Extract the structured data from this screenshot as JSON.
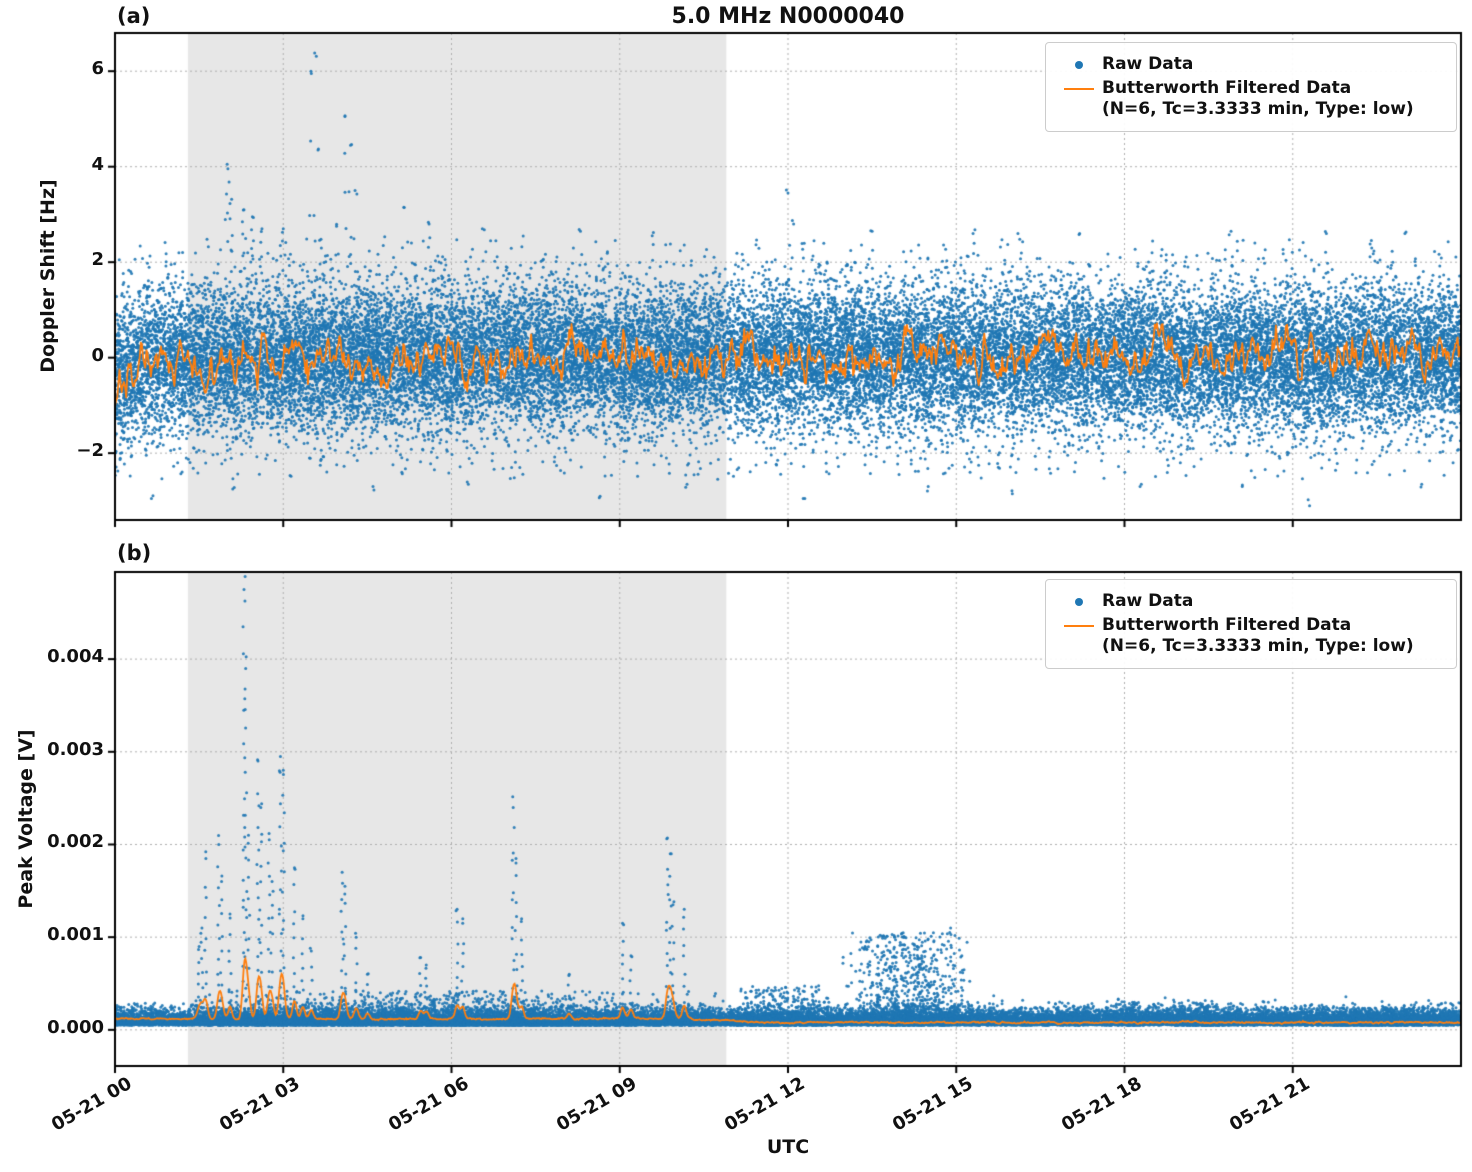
{
  "title": "5.0 MHz N0000040",
  "xlabel": "UTC",
  "panels": {
    "a": {
      "tag": "(a)",
      "ylabel": "Doppler Shift [Hz]"
    },
    "b": {
      "tag": "(b)",
      "ylabel": "Peak Voltage [V]"
    }
  },
  "legend": {
    "raw": "Raw Data",
    "filtered_line1": "Butterworth Filtered Data",
    "filtered_line2": "(N=6, Tc=3.3333 min, Type: low)"
  },
  "colors": {
    "raw": "#1f77b4",
    "filtered": "#ff7f0e",
    "shade": "#e7e7e7",
    "grid": "#b0b0b0",
    "spine": "#000000"
  },
  "chart_data": [
    {
      "panel": "a",
      "type": "scatter",
      "title": "5.0 MHz N0000040",
      "ylabel": "Doppler Shift [Hz]",
      "x_range_hours": [
        0,
        24
      ],
      "xticks": [
        {
          "hour": 0,
          "label": "05-21 00"
        },
        {
          "hour": 3,
          "label": "05-21 03"
        },
        {
          "hour": 6,
          "label": "05-21 06"
        },
        {
          "hour": 9,
          "label": "05-21 09"
        },
        {
          "hour": 12,
          "label": "05-21 12"
        },
        {
          "hour": 15,
          "label": "05-21 15"
        },
        {
          "hour": 18,
          "label": "05-21 18"
        },
        {
          "hour": 21,
          "label": "05-21 21"
        }
      ],
      "ylim": [
        -3.4,
        6.8
      ],
      "yticks": [
        {
          "v": -2,
          "label": "−2"
        },
        {
          "v": 0,
          "label": "0"
        },
        {
          "v": 2,
          "label": "2"
        },
        {
          "v": 4,
          "label": "4"
        },
        {
          "v": 6,
          "label": "6"
        }
      ],
      "grid": "dotted",
      "legend_position": "upper right",
      "shaded_region_hours": [
        1.3,
        10.9
      ],
      "series": [
        {
          "name": "Raw Data",
          "style": "scatter",
          "color": "#1f77b4",
          "noise": {
            "n": 30000,
            "sd": 0.75,
            "clip": 2.55,
            "sparse_n": 900,
            "sparse_range": 2.5,
            "start_mean_dip": -0.5
          },
          "outlier_columns": [
            [
              2.0,
              4.05,
              6
            ],
            [
              2.08,
              3.32,
              4
            ],
            [
              2.3,
              3.1,
              5
            ],
            [
              2.45,
              2.95,
              4
            ],
            [
              2.62,
              2.7,
              3
            ],
            [
              3.0,
              2.7,
              3
            ],
            [
              3.5,
              5.95,
              3
            ],
            [
              3.56,
              6.38,
              2
            ],
            [
              3.62,
              4.35,
              2
            ],
            [
              3.95,
              2.75,
              2
            ],
            [
              4.1,
              5.05,
              4
            ],
            [
              4.2,
              4.45,
              3
            ],
            [
              4.28,
              3.5,
              2
            ],
            [
              5.15,
              3.15,
              2
            ],
            [
              5.6,
              2.8,
              3
            ],
            [
              6.55,
              2.7,
              1
            ],
            [
              8.3,
              2.65,
              2
            ],
            [
              9.6,
              2.62,
              2
            ],
            [
              12.0,
              3.45,
              2
            ],
            [
              12.1,
              2.8,
              2
            ],
            [
              13.5,
              2.65,
              1
            ],
            [
              15.3,
              2.6,
              1
            ],
            [
              16.1,
              2.6,
              1
            ],
            [
              17.2,
              2.6,
              1
            ],
            [
              19.9,
              2.65,
              1
            ],
            [
              21.6,
              2.6,
              1
            ],
            [
              23.0,
              2.6,
              1
            ],
            [
              0.65,
              -2.95,
              1
            ],
            [
              2.1,
              -2.75,
              2
            ],
            [
              4.6,
              -2.7,
              1
            ],
            [
              6.3,
              -2.65,
              1
            ],
            [
              8.65,
              -2.9,
              1
            ],
            [
              10.2,
              -2.65,
              1
            ],
            [
              12.3,
              -2.95,
              1
            ],
            [
              14.5,
              -2.7,
              1
            ],
            [
              16.0,
              -2.85,
              1
            ],
            [
              18.3,
              -2.65,
              1
            ],
            [
              20.1,
              -2.7,
              1
            ],
            [
              21.3,
              -3.1,
              1
            ],
            [
              23.3,
              -2.65,
              1
            ]
          ]
        },
        {
          "name": "Butterworth Filtered Data (N=6, Tc=3.3333 min, Type: low)",
          "style": "line",
          "color": "#ff7f0e",
          "model": {
            "mean": 0,
            "sd": 0.26,
            "clamp": 0.72,
            "start_dip": -1.05,
            "start_tau_h": 0.35
          }
        }
      ]
    },
    {
      "panel": "b",
      "type": "scatter",
      "ylabel": "Peak Voltage [V]",
      "xlabel": "UTC",
      "x_range_hours": [
        0,
        24
      ],
      "xticks": [
        {
          "hour": 0,
          "label": "05-21 00"
        },
        {
          "hour": 3,
          "label": "05-21 03"
        },
        {
          "hour": 6,
          "label": "05-21 06"
        },
        {
          "hour": 9,
          "label": "05-21 09"
        },
        {
          "hour": 12,
          "label": "05-21 12"
        },
        {
          "hour": 15,
          "label": "05-21 15"
        },
        {
          "hour": 18,
          "label": "05-21 18"
        },
        {
          "hour": 21,
          "label": "05-21 21"
        }
      ],
      "ylim": [
        -0.00039,
        0.00494
      ],
      "yticks": [
        {
          "v": 0.0,
          "label": "0.000"
        },
        {
          "v": 0.001,
          "label": "0.001"
        },
        {
          "v": 0.002,
          "label": "0.002"
        },
        {
          "v": 0.003,
          "label": "0.003"
        },
        {
          "v": 0.004,
          "label": "0.004"
        }
      ],
      "grid": "dotted",
      "legend_position": "upper right",
      "shaded_region_hours": [
        1.3,
        10.9
      ],
      "series": [
        {
          "name": "Raw Data",
          "style": "scatter",
          "color": "#1f77b4",
          "noise": {
            "n": 22000,
            "base": 5e-05,
            "spread": 8e-05
          },
          "bumps": [
            [
              1.35,
              10.9,
              0.00042,
              1600,
              3
            ],
            [
              11.0,
              12.85,
              0.00048,
              450,
              3
            ],
            [
              12.9,
              15.35,
              0.00105,
              800,
              2
            ],
            [
              17.85,
              18.35,
              0.0003,
              130,
              2.5
            ],
            [
              18.9,
              19.9,
              0.00028,
              220,
              2.5
            ],
            [
              20.8,
              24.0,
              0.00024,
              400,
              3
            ]
          ],
          "spikes": [
            [
              1.5,
              0.0009
            ],
            [
              1.55,
              0.0011
            ],
            [
              1.62,
              0.00185
            ],
            [
              1.85,
              0.002
            ],
            [
              1.9,
              0.0016
            ],
            [
              2.05,
              0.00125
            ],
            [
              2.3,
              0.00475
            ],
            [
              2.33,
              0.0039
            ],
            [
              2.38,
              0.0021
            ],
            [
              2.55,
              0.0029
            ],
            [
              2.6,
              0.0024
            ],
            [
              2.75,
              0.00205
            ],
            [
              2.8,
              0.0016
            ],
            [
              2.95,
              0.00295
            ],
            [
              3.0,
              0.0028
            ],
            [
              3.2,
              0.00175
            ],
            [
              3.35,
              0.0012
            ],
            [
              3.5,
              0.00085
            ],
            [
              4.05,
              0.0017
            ],
            [
              4.1,
              0.00155
            ],
            [
              4.3,
              0.001
            ],
            [
              4.5,
              0.0006
            ],
            [
              5.45,
              0.00078
            ],
            [
              5.55,
              0.0007
            ],
            [
              6.1,
              0.0013
            ],
            [
              6.2,
              0.00115
            ],
            [
              7.1,
              0.0024
            ],
            [
              7.15,
              0.00185
            ],
            [
              7.25,
              0.0012
            ],
            [
              8.1,
              0.0006
            ],
            [
              9.05,
              0.00115
            ],
            [
              9.2,
              0.0008
            ],
            [
              9.85,
              0.00207
            ],
            [
              9.9,
              0.0019
            ],
            [
              9.95,
              0.00135
            ],
            [
              10.15,
              0.0013
            ],
            [
              13.6,
              0.0009
            ],
            [
              13.9,
              0.001
            ],
            [
              14.3,
              0.0009
            ],
            [
              14.6,
              0.00095
            ],
            [
              14.9,
              0.0011
            ],
            [
              15.1,
              0.0008
            ]
          ]
        },
        {
          "name": "Butterworth Filtered Data (N=6, Tc=3.3333 min, Type: low)",
          "style": "line",
          "color": "#ff7f0e",
          "model": {
            "base_shaded": 0.00012,
            "base_late": 8e-05,
            "spike_amp_factor": 0.11,
            "spike_amp_cap": 0.00033
          }
        }
      ]
    }
  ]
}
